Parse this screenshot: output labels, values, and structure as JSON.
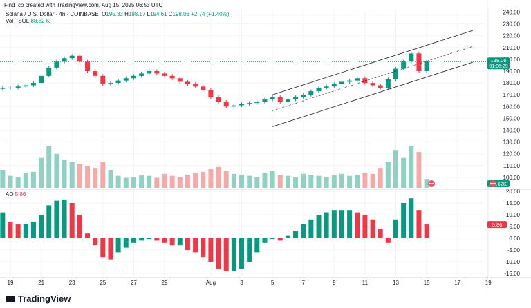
{
  "header": {
    "credit": "Find_co created with TradingView.com, Aug 15, 2025 06:53 UTC",
    "symbol": "Solana / U.S. Dollar · 4h · COINBASE",
    "o_label": "O",
    "o": "195.33",
    "h_label": "H",
    "h": "198.17",
    "l_label": "L",
    "l": "194.61",
    "c_label": "C",
    "c": "198.06",
    "change": "+2.74 (+1.40%)",
    "vol_label": "Vol · SOL",
    "vol": "88.62 K"
  },
  "ao_header": {
    "label": "AO",
    "value": "5.86"
  },
  "price_tag": {
    "price": "198.06",
    "countdown": "01:06:29"
  },
  "vol_tag": "88.62K",
  "ao_tag": "5.86",
  "logo": "TradingView",
  "colors": {
    "up": "#089981",
    "down": "#f23645",
    "up_vol": "#8fd1c2",
    "down_vol": "#f7a9a7"
  },
  "chart_data": {
    "type": "candlestick",
    "interval": "12h approx (displayed 4h)",
    "start": "2025-07-18T12:00",
    "close": [
      176,
      176,
      177,
      178,
      180,
      186,
      193,
      198,
      201,
      203,
      198,
      190,
      186,
      179,
      180,
      182,
      184,
      186,
      188,
      190,
      188,
      186,
      184,
      181,
      179,
      177,
      174,
      168,
      164,
      160,
      161,
      162,
      163,
      164,
      166,
      168,
      164,
      166,
      168,
      170,
      173,
      176,
      177,
      179,
      181,
      182,
      184,
      180,
      178,
      176,
      183,
      192,
      198,
      205,
      190,
      198.06
    ],
    "volume_k": [
      180,
      120,
      110,
      150,
      160,
      300,
      420,
      340,
      280,
      260,
      240,
      220,
      200,
      260,
      180,
      120,
      100,
      110,
      130,
      120,
      100,
      140,
      120,
      110,
      130,
      150,
      160,
      190,
      210,
      170,
      140,
      130,
      120,
      110,
      150,
      170,
      130,
      120,
      110,
      140,
      130,
      120,
      110,
      130,
      140,
      120,
      130,
      150,
      140,
      200,
      260,
      380,
      300,
      420,
      360,
      88.62
    ],
    "ao": [
      11,
      7,
      6,
      6,
      7,
      10,
      14,
      16,
      16.5,
      15,
      10,
      2,
      -3,
      -8,
      -9,
      -6,
      -4,
      -2,
      -1,
      0,
      -1,
      -2,
      -3,
      -3,
      -5,
      -6,
      -8,
      -10,
      -13,
      -14,
      -14,
      -13,
      -10,
      -6,
      -2,
      0,
      -1,
      1,
      3,
      6,
      8,
      10,
      11,
      12,
      12,
      12,
      11,
      10,
      8,
      4,
      -2,
      8,
      15,
      17,
      12,
      5.86
    ],
    "price_axis": [
      "240.00",
      "230.00",
      "220.00",
      "210.00",
      "200.00",
      "190.00",
      "180.00",
      "170.00",
      "160.00",
      "150.00",
      "140.00",
      "130.00",
      "120.00",
      "110.00",
      "100.00"
    ],
    "price_ylim": [
      100,
      240
    ],
    "ao_axis": [
      "20.00",
      "15.00",
      "10.00",
      "5.00",
      "0.00",
      "-5.00",
      "-10.00",
      "-15.00"
    ],
    "ao_ylim": [
      -15,
      20
    ],
    "x_ticks": [
      "19",
      "21",
      "23",
      "25",
      "27",
      "29",
      "Aug",
      "3",
      "5",
      "7",
      "9",
      "11",
      "13",
      "15",
      "17",
      "19"
    ],
    "channel": {
      "start": "Aug 5",
      "end": "Aug 18",
      "upper": [
        170,
        224.5
      ],
      "middle": [
        156.5,
        211
      ],
      "lower": [
        143,
        197.6
      ]
    }
  }
}
